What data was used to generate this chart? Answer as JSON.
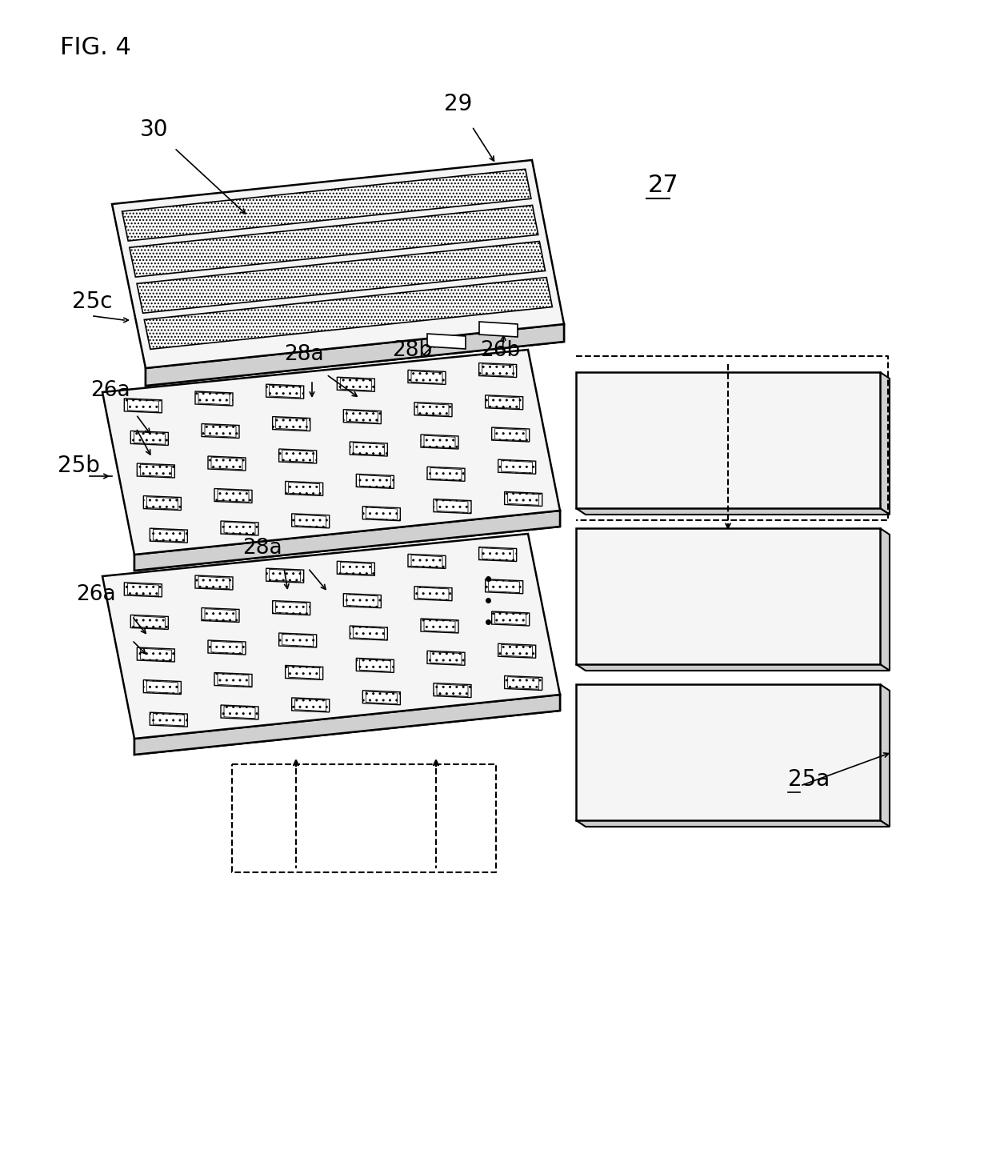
{
  "title": "FIG. 4",
  "background_color": "#ffffff",
  "fig_width": 12.4,
  "fig_height": 14.52,
  "label_27": "27",
  "label_25a": "25a",
  "label_25b": "25b",
  "label_25c": "25c",
  "label_26a": "26a",
  "label_26b": "26b",
  "label_28a": "28a",
  "label_28b": "28b",
  "label_29": "29",
  "label_30": "30"
}
